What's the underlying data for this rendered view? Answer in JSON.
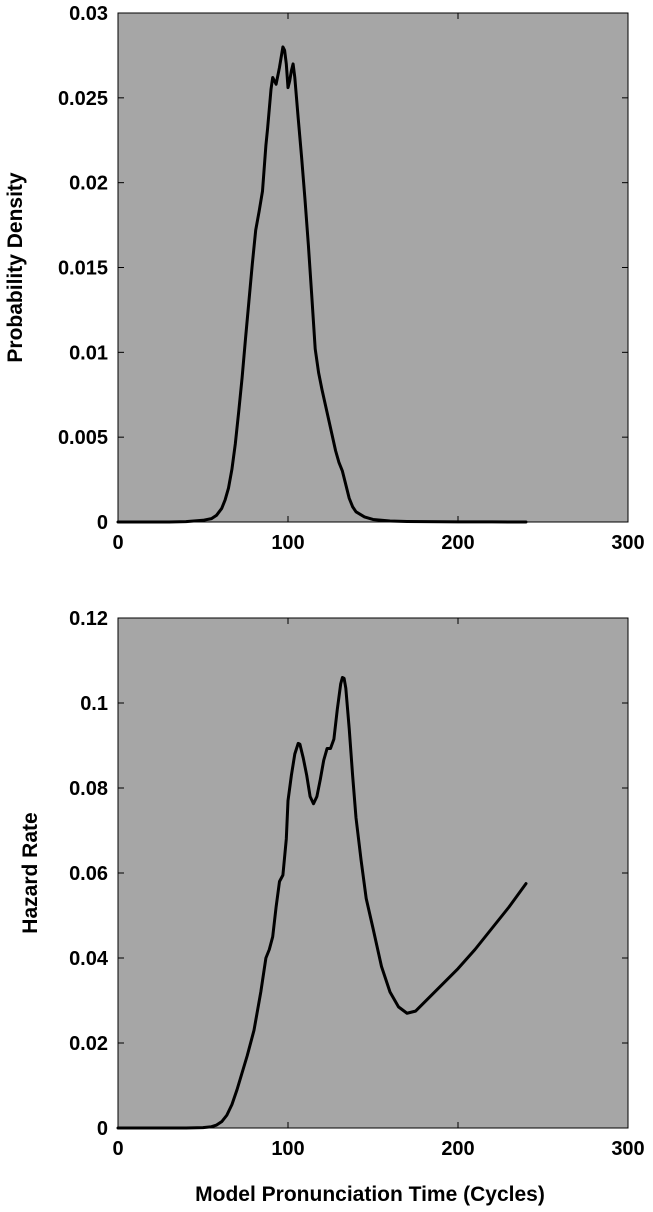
{
  "chart_data": [
    {
      "type": "line",
      "title": "",
      "xlabel": "",
      "ylabel": "Probability Density",
      "xlim": [
        0,
        300
      ],
      "ylim": [
        0,
        0.03
      ],
      "xticks": [
        0,
        100,
        200,
        300
      ],
      "yticks": [
        0,
        0.005,
        0.01,
        0.015,
        0.02,
        0.025,
        0.03
      ],
      "xtick_labels": [
        "0",
        "100",
        "200",
        "300"
      ],
      "ytick_labels": [
        "0",
        "0.005",
        "0.01",
        "0.015",
        "0.02",
        "0.025",
        "0.03"
      ],
      "grid": false,
      "background_color": "#a6a6a6",
      "line_color": "#000000",
      "series": [
        {
          "x": [
            0,
            30,
            40,
            50,
            55,
            58,
            61,
            63,
            65,
            67,
            69,
            71,
            73,
            75,
            77,
            79,
            81,
            83,
            85,
            87,
            88,
            90,
            91,
            92,
            93,
            95,
            97,
            98,
            99,
            100,
            101,
            102,
            103,
            104,
            105,
            106,
            108,
            110,
            112,
            114,
            116,
            118,
            120,
            122,
            124,
            126,
            128,
            130,
            132,
            134,
            136,
            138,
            140,
            145,
            150,
            155,
            160,
            170,
            180,
            200,
            220,
            240
          ],
          "y": [
            0,
            0,
            2e-05,
            0.0001,
            0.0002,
            0.0004,
            0.0008,
            0.0013,
            0.002,
            0.0031,
            0.0046,
            0.0065,
            0.0085,
            0.0108,
            0.013,
            0.0152,
            0.0172,
            0.0183,
            0.0195,
            0.0222,
            0.0232,
            0.0255,
            0.0262,
            0.026,
            0.0258,
            0.0268,
            0.028,
            0.0278,
            0.027,
            0.0256,
            0.026,
            0.0266,
            0.027,
            0.0262,
            0.025,
            0.0238,
            0.0215,
            0.019,
            0.0163,
            0.0133,
            0.0102,
            0.0088,
            0.0078,
            0.0069,
            0.006,
            0.0051,
            0.0042,
            0.0035,
            0.003,
            0.0022,
            0.0014,
            0.0009,
            0.0006,
            0.0003,
            0.00015,
            0.0001,
            6e-05,
            3e-05,
            2e-05,
            1e-05,
            5e-06,
            2e-06
          ]
        }
      ]
    },
    {
      "type": "line",
      "title": "",
      "xlabel": "Model Pronunciation Time (Cycles)",
      "ylabel": "Hazard Rate",
      "xlim": [
        0,
        300
      ],
      "ylim": [
        0,
        0.12
      ],
      "xticks": [
        0,
        100,
        200,
        300
      ],
      "yticks": [
        0,
        0.02,
        0.04,
        0.06,
        0.08,
        0.1,
        0.12
      ],
      "xtick_labels": [
        "0",
        "100",
        "200",
        "300"
      ],
      "ytick_labels": [
        "0",
        "0.02",
        "0.04",
        "0.06",
        "0.08",
        "0.1",
        "0.12"
      ],
      "grid": false,
      "background_color": "#a6a6a6",
      "line_color": "#000000",
      "series": [
        {
          "x": [
            0,
            40,
            50,
            55,
            58,
            61,
            64,
            67,
            70,
            73,
            76,
            80,
            84,
            87,
            89,
            91,
            93,
            95,
            97,
            99,
            100,
            102,
            104,
            106,
            107,
            109,
            111,
            113,
            115,
            117,
            119,
            121,
            123,
            125,
            127,
            129,
            131,
            132,
            133,
            134,
            136,
            138,
            140,
            143,
            146,
            150,
            155,
            160,
            165,
            170,
            175,
            180,
            190,
            200,
            210,
            220,
            230,
            240
          ],
          "y": [
            0,
            0,
            0.0001,
            0.0003,
            0.0007,
            0.0015,
            0.003,
            0.0055,
            0.009,
            0.013,
            0.017,
            0.023,
            0.032,
            0.04,
            0.042,
            0.045,
            0.052,
            0.058,
            0.0595,
            0.068,
            0.077,
            0.083,
            0.088,
            0.0905,
            0.0903,
            0.087,
            0.083,
            0.078,
            0.0763,
            0.078,
            0.082,
            0.0865,
            0.0893,
            0.0893,
            0.0915,
            0.0985,
            0.1045,
            0.106,
            0.1058,
            0.1035,
            0.094,
            0.083,
            0.073,
            0.063,
            0.054,
            0.047,
            0.038,
            0.032,
            0.0285,
            0.027,
            0.0275,
            0.0295,
            0.0335,
            0.0375,
            0.042,
            0.047,
            0.052,
            0.0575
          ]
        }
      ]
    }
  ]
}
